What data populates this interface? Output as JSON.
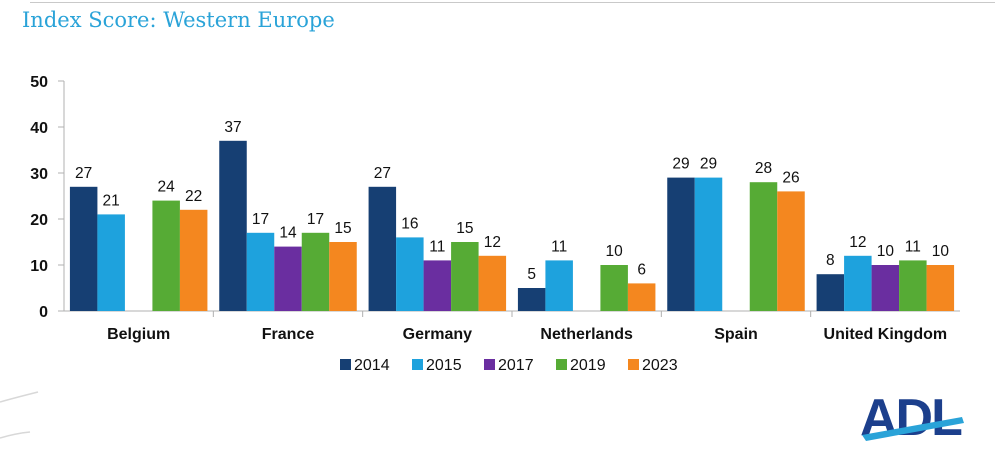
{
  "page": {
    "title": "Index Score: Western Europe"
  },
  "logo": {
    "text": "ADL"
  },
  "colors": {
    "title": "#2aa3d8",
    "axis": "#b0b0b0",
    "series": [
      "#163f73",
      "#1ea2dd",
      "#6a2ea0",
      "#56ab35",
      "#f4871f"
    ]
  },
  "chart_data": {
    "type": "bar",
    "title": "Index Score: Western Europe",
    "xlabel": "",
    "ylabel": "",
    "ylim": [
      0,
      50
    ],
    "yticks": [
      0,
      10,
      20,
      30,
      40,
      50
    ],
    "grid": false,
    "legend": "bottom",
    "categories": [
      "Belgium",
      "France",
      "Germany",
      "Netherlands",
      "Spain",
      "United Kingdom"
    ],
    "series": [
      {
        "name": "2014",
        "values": [
          27,
          37,
          27,
          5,
          29,
          8
        ]
      },
      {
        "name": "2015",
        "values": [
          21,
          17,
          16,
          11,
          29,
          12
        ]
      },
      {
        "name": "2017",
        "values": [
          null,
          14,
          11,
          null,
          null,
          10
        ]
      },
      {
        "name": "2019",
        "values": [
          24,
          17,
          15,
          10,
          28,
          11
        ]
      },
      {
        "name": "2023",
        "values": [
          22,
          15,
          12,
          6,
          26,
          10
        ]
      }
    ]
  }
}
